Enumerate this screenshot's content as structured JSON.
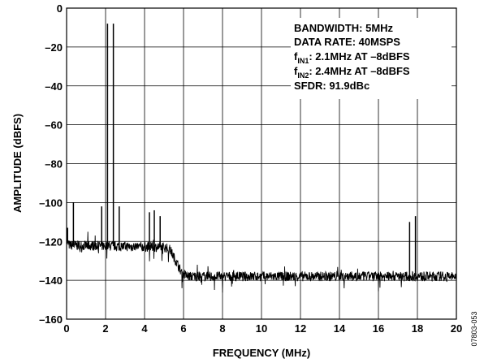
{
  "chart_data": {
    "type": "line",
    "xlabel": "FREQUENCY (MHz)",
    "ylabel": "AMPLITUDE (dBFS)",
    "xlim": [
      0,
      20
    ],
    "ylim": [
      -160,
      0
    ],
    "x_ticks": [
      "0",
      "2",
      "4",
      "6",
      "8",
      "10",
      "12",
      "14",
      "16",
      "18",
      "20"
    ],
    "y_ticks": [
      "0",
      "–20",
      "–40",
      "–60",
      "–80",
      "–100",
      "–120",
      "–140",
      "–160"
    ],
    "grid": true,
    "annotations": {
      "line1": "BANDWIDTH: 5MHz",
      "line2": "DATA RATE: 40MSPS",
      "line3_pre": "f",
      "line3_sub": "IN1",
      "line3_post": ": 2.1MHz AT –8dBFS",
      "line4_pre": "f",
      "line4_sub": "IN2",
      "line4_post": ": 2.4MHz AT –8dBFS",
      "line5": "SFDR: 91.9dBc"
    },
    "noise_floor": [
      {
        "x": 0.0,
        "y": -120
      },
      {
        "x": 0.15,
        "y": -122
      },
      {
        "x": 5.0,
        "y": -123
      },
      {
        "x": 5.3,
        "y": -124
      },
      {
        "x": 5.6,
        "y": -130
      },
      {
        "x": 5.9,
        "y": -136
      },
      {
        "x": 6.2,
        "y": -138
      },
      {
        "x": 20.0,
        "y": -138
      }
    ],
    "spurs": [
      {
        "x": 0.05,
        "y": -113
      },
      {
        "x": 0.35,
        "y": -100
      },
      {
        "x": 1.8,
        "y": -102
      },
      {
        "x": 2.1,
        "y": -8
      },
      {
        "x": 2.4,
        "y": -8
      },
      {
        "x": 2.7,
        "y": -102
      },
      {
        "x": 4.25,
        "y": -105
      },
      {
        "x": 4.5,
        "y": -104
      },
      {
        "x": 4.8,
        "y": -107
      },
      {
        "x": 17.6,
        "y": -110
      },
      {
        "x": 17.9,
        "y": -107
      }
    ]
  },
  "figure_id": "07803-053"
}
